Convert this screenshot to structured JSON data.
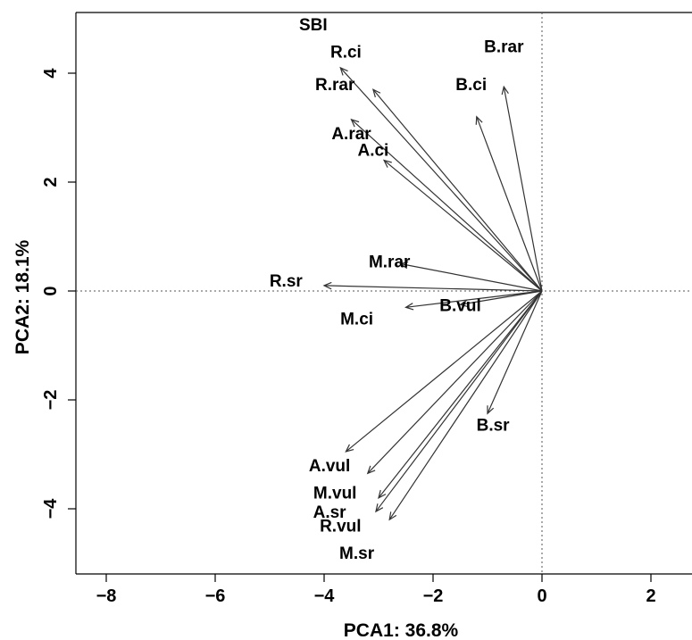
{
  "chart_data": {
    "type": "scatter",
    "subtype": "pca-biplot-loadings",
    "xlabel": "PCA1: 36.8%",
    "ylabel": "PCA2: 18.1%",
    "xlim": [
      -8.5,
      2.7
    ],
    "ylim": [
      -5.3,
      5.2
    ],
    "x_ticks": [
      "-8",
      "-6",
      "-4",
      "-2",
      "0",
      "2"
    ],
    "y_ticks": [
      "-4",
      "-2",
      "0",
      "2",
      "4"
    ],
    "reference_lines": "dotted lines at x=0 and y=0",
    "origin": [
      0,
      0
    ],
    "vectors": [
      {
        "name": "SBI",
        "label": "SBI",
        "x": null,
        "y": null,
        "label_x": -4.2,
        "label_y": 4.9
      },
      {
        "name": "R.ci",
        "label": "R.ci",
        "x": -3.7,
        "y": 4.1,
        "label_x": -3.6,
        "label_y": 4.4
      },
      {
        "name": "R.rar",
        "label": "R.rar",
        "x": -3.1,
        "y": 3.7,
        "label_x": -3.8,
        "label_y": 3.8
      },
      {
        "name": "B.rar",
        "label": "B.rar",
        "x": -0.7,
        "y": 3.75,
        "label_x": -0.7,
        "label_y": 4.5
      },
      {
        "name": "B.ci",
        "label": "B.ci",
        "x": -1.2,
        "y": 3.2,
        "label_x": -1.3,
        "label_y": 3.8
      },
      {
        "name": "A.rar",
        "label": "A.rar",
        "x": -3.5,
        "y": 3.15,
        "label_x": -3.5,
        "label_y": 2.9
      },
      {
        "name": "A.ci",
        "label": "A.ci",
        "x": -2.9,
        "y": 2.4,
        "label_x": -3.1,
        "label_y": 2.6
      },
      {
        "name": "M.rar",
        "label": "M.rar",
        "x": -2.6,
        "y": 0.5,
        "label_x": -2.8,
        "label_y": 0.55
      },
      {
        "name": "R.sr",
        "label": "R.sr",
        "x": -4.0,
        "y": 0.1,
        "label_x": -4.7,
        "label_y": 0.2
      },
      {
        "name": "B.vul",
        "label": "B.vul",
        "x": -1.5,
        "y": -0.25,
        "label_x": -1.5,
        "label_y": -0.25
      },
      {
        "name": "M.ci",
        "label": "M.ci",
        "x": -2.5,
        "y": -0.3,
        "label_x": -3.4,
        "label_y": -0.5
      },
      {
        "name": "B.sr",
        "label": "B.sr",
        "x": -1.0,
        "y": -2.25,
        "label_x": -0.9,
        "label_y": -2.45
      },
      {
        "name": "A.vul",
        "label": "A.vul",
        "x": -3.6,
        "y": -2.95,
        "label_x": -3.9,
        "label_y": -3.2
      },
      {
        "name": "M.vul",
        "label": "M.vul",
        "x": -3.2,
        "y": -3.35,
        "label_x": -3.8,
        "label_y": -3.7
      },
      {
        "name": "M.vul2",
        "label": "",
        "x": -3.0,
        "y": -3.8,
        "label_x": null,
        "label_y": null
      },
      {
        "name": "A.sr",
        "label": "A.sr",
        "x": -3.05,
        "y": -4.05,
        "label_x": -3.9,
        "label_y": -4.05
      },
      {
        "name": "R.vul",
        "label": "R.vul",
        "x": -2.8,
        "y": -4.2,
        "label_x": -3.7,
        "label_y": -4.3
      },
      {
        "name": "M.sr",
        "label": "M.sr",
        "x": null,
        "y": null,
        "label_x": -3.4,
        "label_y": -4.8
      }
    ]
  },
  "colors": {
    "arrow": "#333333",
    "axis": "#000000",
    "reference_line": "#555555"
  }
}
